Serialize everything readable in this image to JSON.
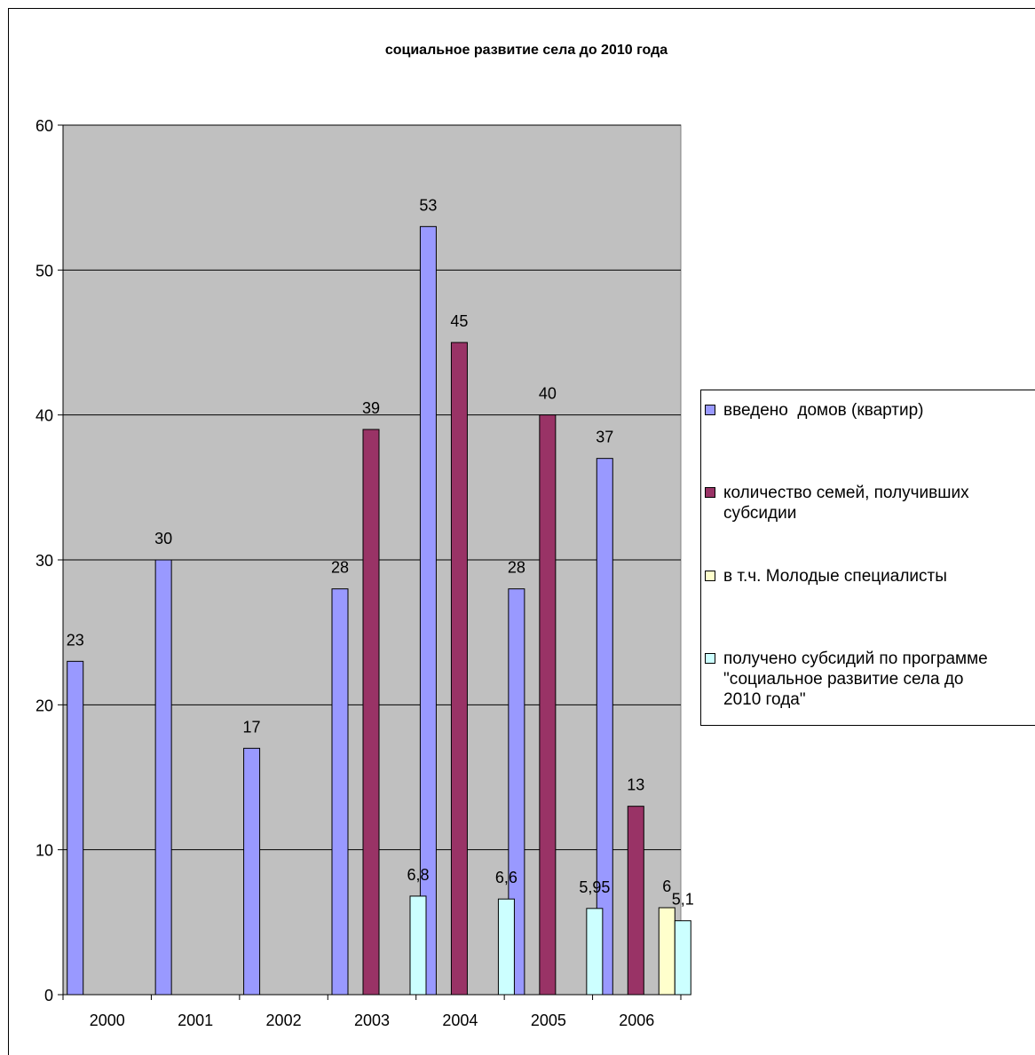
{
  "chart_data": {
    "type": "bar",
    "title": "социальное развитие села до 2010 года",
    "xlabel": "",
    "ylabel": "",
    "categories": [
      "2000",
      "2001",
      "2002",
      "2003",
      "2004",
      "2005",
      "2006"
    ],
    "ylim": [
      0,
      60
    ],
    "yticks": [
      "0",
      "10",
      "20",
      "30",
      "40",
      "50",
      "60"
    ],
    "grid": true,
    "plot_background": "#c0c0c0",
    "legend_position": "right",
    "series": [
      {
        "name": "введено  домов (квартир)",
        "color": "#9999ff",
        "values": [
          23,
          30,
          17,
          28,
          53,
          28,
          37
        ],
        "labels": [
          "23",
          "30",
          "17",
          "28",
          "53",
          "28",
          "37"
        ]
      },
      {
        "name": "количество семей, получивших субсидии",
        "color": "#993366",
        "values": [
          null,
          null,
          null,
          39,
          45,
          40,
          13
        ],
        "labels": [
          "",
          "",
          "",
          "39",
          "45",
          "40",
          "13"
        ]
      },
      {
        "name": "в т.ч. Молодые специалисты",
        "color": "#ffffcc",
        "values": [
          null,
          null,
          null,
          null,
          null,
          null,
          6
        ],
        "labels": [
          "",
          "",
          "",
          "",
          "",
          "",
          "6"
        ]
      },
      {
        "name": "получено субсидий по программе \"социальное развитие села до 2010 года\"",
        "color": "#ccffff",
        "values": [
          null,
          null,
          null,
          6.8,
          6.6,
          5.95,
          5.1
        ],
        "labels": [
          "",
          "",
          "",
          "6,8",
          "6,6",
          "5,95",
          "5,1"
        ]
      }
    ]
  },
  "legend": {
    "items": [
      "введено  домов (квартир)",
      "количество семей, получивших\nсубсидии",
      "в т.ч. Молодые специалисты",
      "получено субсидий по программе\n\"социальное развитие села до\n2010 года\""
    ]
  }
}
